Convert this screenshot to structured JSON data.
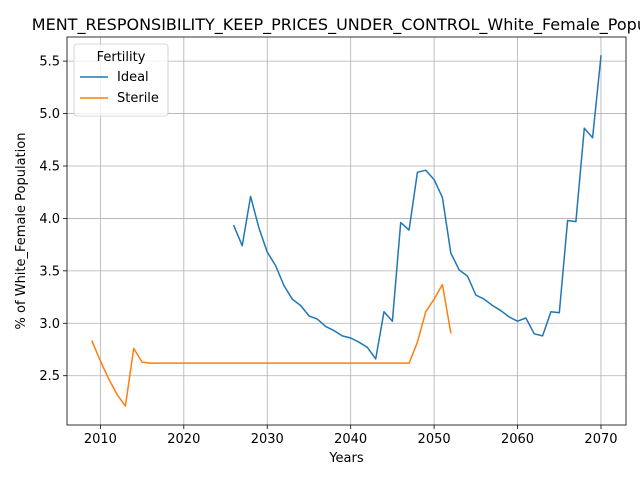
{
  "chart_data": {
    "type": "line",
    "title": "MENT_RESPONSIBILITY_KEEP_PRICES_UNDER_CONTROL_White_Female_Popula",
    "xlabel": "Years",
    "ylabel": "% of White_Female Population",
    "xlim": [
      2006,
      2073
    ],
    "ylim": [
      2.03,
      5.73
    ],
    "xticks": [
      2010,
      2020,
      2030,
      2040,
      2050,
      2060,
      2070
    ],
    "yticks": [
      2.5,
      3.0,
      3.5,
      4.0,
      4.5,
      5.0,
      5.5
    ],
    "xtick_labels": [
      "2010",
      "2020",
      "2030",
      "2040",
      "2050",
      "2060",
      "2070"
    ],
    "ytick_labels": [
      "2.5",
      "3.0",
      "3.5",
      "4.0",
      "4.5",
      "5.0",
      "5.5"
    ],
    "grid": true,
    "legend": {
      "title": "Fertility",
      "placement": "upper-left"
    },
    "series": [
      {
        "name": "Ideal",
        "color": "#1f77b4",
        "x": [
          2026,
          2027,
          2028,
          2029,
          2030,
          2031,
          2032,
          2033,
          2034,
          2035,
          2036,
          2037,
          2038,
          2039,
          2040,
          2041,
          2042,
          2043,
          2044,
          2045,
          2046,
          2047,
          2048,
          2049,
          2050,
          2051,
          2052,
          2053,
          2054,
          2055,
          2056,
          2057,
          2058,
          2059,
          2060,
          2061,
          2062,
          2063,
          2064,
          2065,
          2066,
          2067,
          2068,
          2069,
          2070
        ],
        "y": [
          3.93,
          3.74,
          4.21,
          3.91,
          3.68,
          3.55,
          3.36,
          3.23,
          3.17,
          3.07,
          3.04,
          2.97,
          2.93,
          2.88,
          2.86,
          2.82,
          2.77,
          2.66,
          3.11,
          3.02,
          3.96,
          3.89,
          4.44,
          4.46,
          4.37,
          4.2,
          3.67,
          3.51,
          3.45,
          3.27,
          3.23,
          3.17,
          3.12,
          3.06,
          3.02,
          3.05,
          2.9,
          2.88,
          3.11,
          3.1,
          3.98,
          3.97,
          4.86,
          4.77,
          5.55
        ]
      },
      {
        "name": "Sterile",
        "color": "#ff7f0e",
        "x": [
          2009,
          2010,
          2011,
          2012,
          2013,
          2014,
          2015,
          2016,
          2017,
          2018,
          2019,
          2020,
          2021,
          2022,
          2023,
          2024,
          2025,
          2026,
          2027,
          2028,
          2029,
          2030,
          2031,
          2032,
          2033,
          2034,
          2035,
          2036,
          2037,
          2038,
          2039,
          2040,
          2041,
          2042,
          2043,
          2044,
          2045,
          2046,
          2047,
          2048,
          2049,
          2050,
          2051,
          2052
        ],
        "y": [
          2.83,
          2.64,
          2.47,
          2.32,
          2.21,
          2.76,
          2.63,
          2.62,
          2.62,
          2.62,
          2.62,
          2.62,
          2.62,
          2.62,
          2.62,
          2.62,
          2.62,
          2.62,
          2.62,
          2.62,
          2.62,
          2.62,
          2.62,
          2.62,
          2.62,
          2.62,
          2.62,
          2.62,
          2.62,
          2.62,
          2.62,
          2.62,
          2.62,
          2.62,
          2.62,
          2.62,
          2.62,
          2.62,
          2.62,
          2.82,
          3.11,
          3.23,
          3.37,
          2.91
        ]
      }
    ]
  }
}
